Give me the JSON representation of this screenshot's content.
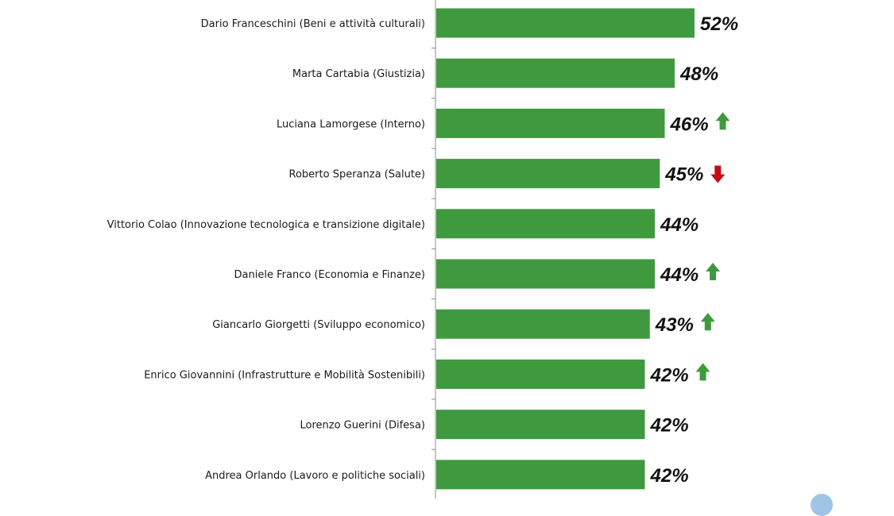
{
  "colors": {
    "bar": "#3f9a3f",
    "axis": "#8c8c8c",
    "arrow_up": "#3f9a3f",
    "arrow_down": "#c40d12",
    "corner_accent": "#9fc4e6"
  },
  "chart_data": {
    "type": "bar",
    "orientation": "horizontal",
    "title": "",
    "xlabel": "",
    "ylabel": "",
    "value_suffix": "%",
    "xlim": [
      0,
      100
    ],
    "grid": false,
    "categories": [
      "Dario Franceschini (Beni e attività culturali)",
      "Marta Cartabia (Giustizia)",
      "Luciana Lamorgese (Interno)",
      "Roberto Speranza (Salute)",
      "Vittorio Colao (Innovazione tecnologica e transizione digitale)",
      "Daniele Franco (Economia e Finanze)",
      "Giancarlo Giorgetti (Sviluppo economico)",
      "Enrico Giovannini (Infrastrutture e Mobilità Sostenibili)",
      "Lorenzo Guerini (Difesa)",
      "Andrea Orlando (Lavoro e politiche sociali)"
    ],
    "values": [
      52,
      48,
      46,
      45,
      44,
      44,
      43,
      42,
      42,
      42
    ],
    "labels": [
      "52%",
      "48%",
      "46%",
      "45%",
      "44%",
      "44%",
      "43%",
      "42%",
      "42%",
      "42%"
    ],
    "trend": [
      "none",
      "none",
      "up",
      "down",
      "none",
      "up",
      "up",
      "up",
      "none",
      "none"
    ],
    "trend_icons": {
      "up": "arrow-up-icon",
      "down": "arrow-down-icon"
    }
  }
}
